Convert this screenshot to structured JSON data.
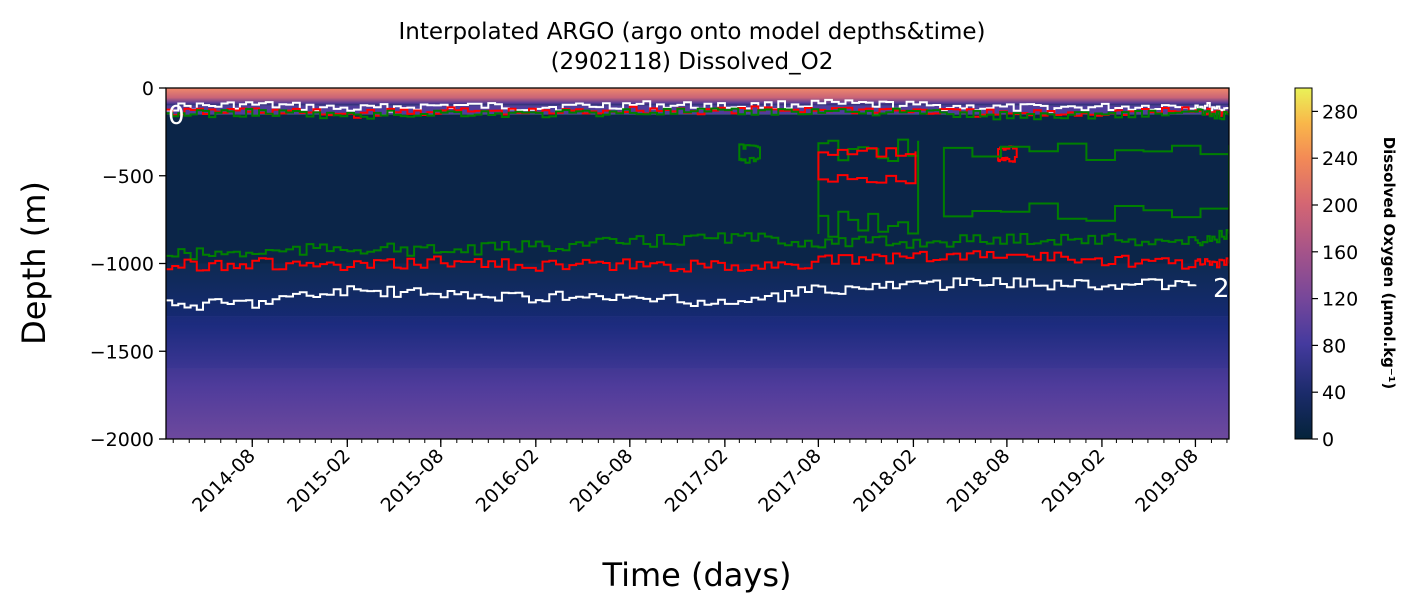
{
  "chart_data": {
    "type": "heatmap",
    "title": "Interpolated ARGO (argo onto model depths&time)",
    "subtitle": "(2902118) Dissolved_O2",
    "xlabel": "Time (days)",
    "ylabel": "Depth (m)",
    "x_range": [
      "2014-02-15",
      "2019-10-05"
    ],
    "ylim": [
      -2000,
      0
    ],
    "y_ticks": [
      0,
      -500,
      -1000,
      -1500,
      -2000
    ],
    "y_tick_labels": [
      "0",
      "−500",
      "−1000",
      "−1500",
      "−2000"
    ],
    "x_ticks": [
      "2014-08",
      "2015-02",
      "2015-08",
      "2016-02",
      "2016-08",
      "2017-02",
      "2017-08",
      "2018-02",
      "2018-08",
      "2019-02",
      "2019-08"
    ],
    "colorbar": {
      "label": "Dissolved Oxygen (µmol.kg⁻¹)",
      "min": 0,
      "max": 300,
      "ticks": [
        "0",
        "40",
        "80",
        "120",
        "160",
        "200",
        "240",
        "280"
      ],
      "colormap": "thermal"
    },
    "profile_bands": [
      {
        "depth_top": 0,
        "depth_bottom": -100,
        "o2": 190
      },
      {
        "depth_top": -100,
        "depth_bottom": -150,
        "o2": 90
      },
      {
        "depth_top": -150,
        "depth_bottom": -1000,
        "o2": 12
      },
      {
        "depth_top": -1000,
        "depth_bottom": -1300,
        "o2": 35
      },
      {
        "depth_top": -1300,
        "depth_bottom": -1600,
        "o2": 75
      },
      {
        "depth_top": -1600,
        "depth_bottom": -2000,
        "o2": 110
      }
    ],
    "contours": [
      {
        "name": "100",
        "color": "#ffffff",
        "label_left": "0",
        "label_right": "",
        "points": [
          [
            "2014-02-15",
            -110
          ],
          [
            "2014-08-01",
            -95
          ],
          [
            "2015-02-01",
            -120
          ],
          [
            "2015-08-01",
            -100
          ],
          [
            "2016-02-01",
            -110
          ],
          [
            "2016-08-01",
            -95
          ],
          [
            "2017-02-01",
            -105
          ],
          [
            "2017-08-01",
            -90
          ],
          [
            "2018-02-01",
            -100
          ],
          [
            "2018-08-01",
            -115
          ],
          [
            "2019-02-01",
            -110
          ],
          [
            "2019-08-01",
            -100
          ],
          [
            "2019-10-05",
            -120
          ]
        ]
      },
      {
        "name": "80",
        "color": "#ff0000",
        "label_left": "",
        "label_right": "",
        "points": [
          [
            "2014-02-15",
            -140
          ],
          [
            "2014-08-01",
            -130
          ],
          [
            "2015-02-01",
            -150
          ],
          [
            "2015-08-01",
            -130
          ],
          [
            "2016-02-01",
            -140
          ],
          [
            "2016-08-01",
            -125
          ],
          [
            "2017-02-01",
            -130
          ],
          [
            "2017-08-01",
            -120
          ],
          [
            "2018-02-01",
            -130
          ],
          [
            "2018-08-01",
            -150
          ],
          [
            "2019-02-01",
            -140
          ],
          [
            "2019-08-01",
            -130
          ],
          [
            "2019-10-05",
            -150
          ]
        ]
      },
      {
        "name": "60",
        "color": "#008000",
        "label_left": "",
        "label_right": "",
        "points": [
          [
            "2014-02-15",
            -150
          ],
          [
            "2014-08-01",
            -140
          ],
          [
            "2015-02-01",
            -160
          ],
          [
            "2015-08-01",
            -140
          ],
          [
            "2016-02-01",
            -150
          ],
          [
            "2016-08-01",
            -135
          ],
          [
            "2017-02-01",
            -140
          ],
          [
            "2017-08-01",
            -130
          ],
          [
            "2018-02-01",
            -140
          ],
          [
            "2018-08-01",
            -160
          ],
          [
            "2019-02-01",
            -150
          ],
          [
            "2019-08-01",
            -140
          ],
          [
            "2019-10-05",
            -160
          ]
        ]
      },
      {
        "name": "60 deep",
        "color": "#008000",
        "label_left": "",
        "label_right": "",
        "points": [
          [
            "2014-02-15",
            -950
          ],
          [
            "2014-08-01",
            -940
          ],
          [
            "2015-02-01",
            -910
          ],
          [
            "2015-08-01",
            -930
          ],
          [
            "2016-02-01",
            -900
          ],
          [
            "2016-08-01",
            -880
          ],
          [
            "2017-02-01",
            -850
          ],
          [
            "2017-08-01",
            -880
          ],
          [
            "2018-02-01",
            -880
          ],
          [
            "2018-08-01",
            -860
          ],
          [
            "2019-02-01",
            -860
          ],
          [
            "2019-08-01",
            -880
          ],
          [
            "2019-10-05",
            -830
          ]
        ]
      },
      {
        "name": "80 deep",
        "color": "#ff0000",
        "label_left": "",
        "label_right": "",
        "points": [
          [
            "2014-02-15",
            -1010
          ],
          [
            "2014-08-01",
            -1000
          ],
          [
            "2015-02-01",
            -1020
          ],
          [
            "2015-08-01",
            -990
          ],
          [
            "2016-02-01",
            -1010
          ],
          [
            "2016-08-01",
            -1010
          ],
          [
            "2017-02-01",
            -1020
          ],
          [
            "2017-08-01",
            -990
          ],
          [
            "2018-02-01",
            -960
          ],
          [
            "2018-08-01",
            -950
          ],
          [
            "2019-02-01",
            -980
          ],
          [
            "2019-08-01",
            -1000
          ],
          [
            "2019-10-05",
            -1000
          ]
        ]
      },
      {
        "name": "100 deep",
        "color": "#ffffff",
        "label_left": "",
        "label_right": "2",
        "points": [
          [
            "2014-02-15",
            -1240
          ],
          [
            "2014-08-01",
            -1220
          ],
          [
            "2015-02-01",
            -1150
          ],
          [
            "2015-08-01",
            -1180
          ],
          [
            "2016-02-01",
            -1190
          ],
          [
            "2016-08-01",
            -1200
          ],
          [
            "2017-02-01",
            -1230
          ],
          [
            "2017-08-01",
            -1150
          ],
          [
            "2018-02-01",
            -1120
          ],
          [
            "2018-08-01",
            -1110
          ],
          [
            "2019-02-01",
            -1120
          ],
          [
            "2019-08-01",
            -1120
          ]
        ]
      }
    ],
    "anomaly_patches": [
      {
        "color": "#008000",
        "x_start": "2017-08-01",
        "x_end": "2018-02-10",
        "depth_top": -280,
        "depth_bottom": -870
      },
      {
        "color": "#ff0000",
        "x_start": "2017-08-01",
        "x_end": "2018-02-05",
        "depth_top": -340,
        "depth_bottom": -550
      },
      {
        "color": "#ff0000",
        "x_start": "2018-07-15",
        "x_end": "2018-08-20",
        "depth_top": -330,
        "depth_bottom": -420
      },
      {
        "color": "#008000",
        "x_start": "2017-03-01",
        "x_end": "2017-04-10",
        "depth_top": -320,
        "depth_bottom": -430
      },
      {
        "color": "#008000",
        "x_start": "2018-04-01",
        "x_end": "2019-10-05",
        "depth_top": -300,
        "depth_bottom": -800
      }
    ]
  }
}
